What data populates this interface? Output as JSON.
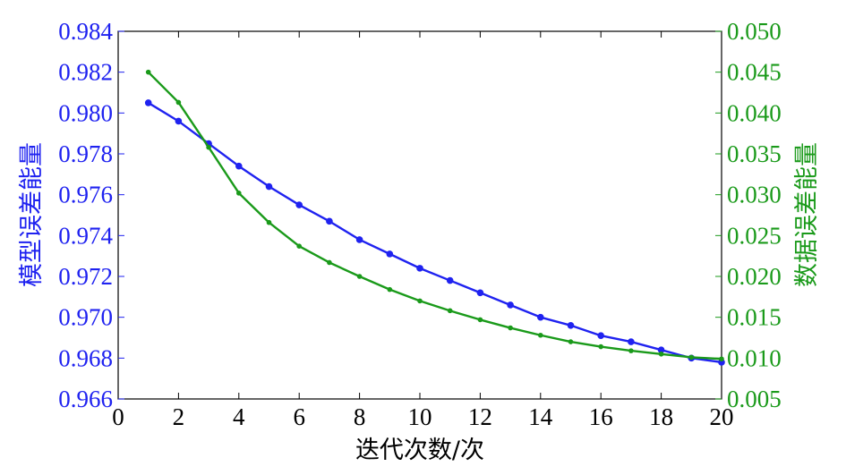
{
  "chart_data": {
    "type": "line",
    "title": "",
    "xlabel": "迭代次数/次",
    "ylabel_left": "模型误差能量",
    "ylabel_right": "数据误差能量",
    "xlim": [
      0,
      20
    ],
    "ylim_left": [
      0.966,
      0.984
    ],
    "ylim_right": [
      0.005,
      0.05
    ],
    "x_ticks": [
      "0",
      "2",
      "4",
      "6",
      "8",
      "10",
      "12",
      "14",
      "16",
      "18",
      "20"
    ],
    "y_ticks_left": [
      "0.966",
      "0.968",
      "0.970",
      "0.972",
      "0.974",
      "0.976",
      "0.978",
      "0.980",
      "0.982",
      "0.984"
    ],
    "y_ticks_right": [
      "0.005",
      "0.010",
      "0.015",
      "0.020",
      "0.025",
      "0.030",
      "0.035",
      "0.040",
      "0.045",
      "0.050"
    ],
    "grid": false,
    "x": [
      1,
      2,
      3,
      4,
      5,
      6,
      7,
      8,
      9,
      10,
      11,
      12,
      13,
      14,
      15,
      16,
      17,
      18,
      19,
      20
    ],
    "series": [
      {
        "axis": "left",
        "color": "#1f22f0",
        "marker": "circle",
        "values": [
          0.9805,
          0.9796,
          0.9785,
          0.9774,
          0.9764,
          0.9755,
          0.9747,
          0.9738,
          0.9731,
          0.9724,
          0.9718,
          0.9712,
          0.9706,
          0.97,
          0.9696,
          0.9691,
          0.9688,
          0.9684,
          0.968,
          0.9678
        ]
      },
      {
        "axis": "right",
        "color": "#1a9a1a",
        "marker": "dot",
        "values": [
          0.045,
          0.0413,
          0.0358,
          0.0302,
          0.0266,
          0.0237,
          0.0217,
          0.02,
          0.0184,
          0.017,
          0.0158,
          0.0147,
          0.0137,
          0.0128,
          0.012,
          0.0114,
          0.0109,
          0.0105,
          0.0101,
          0.0099
        ]
      }
    ]
  }
}
